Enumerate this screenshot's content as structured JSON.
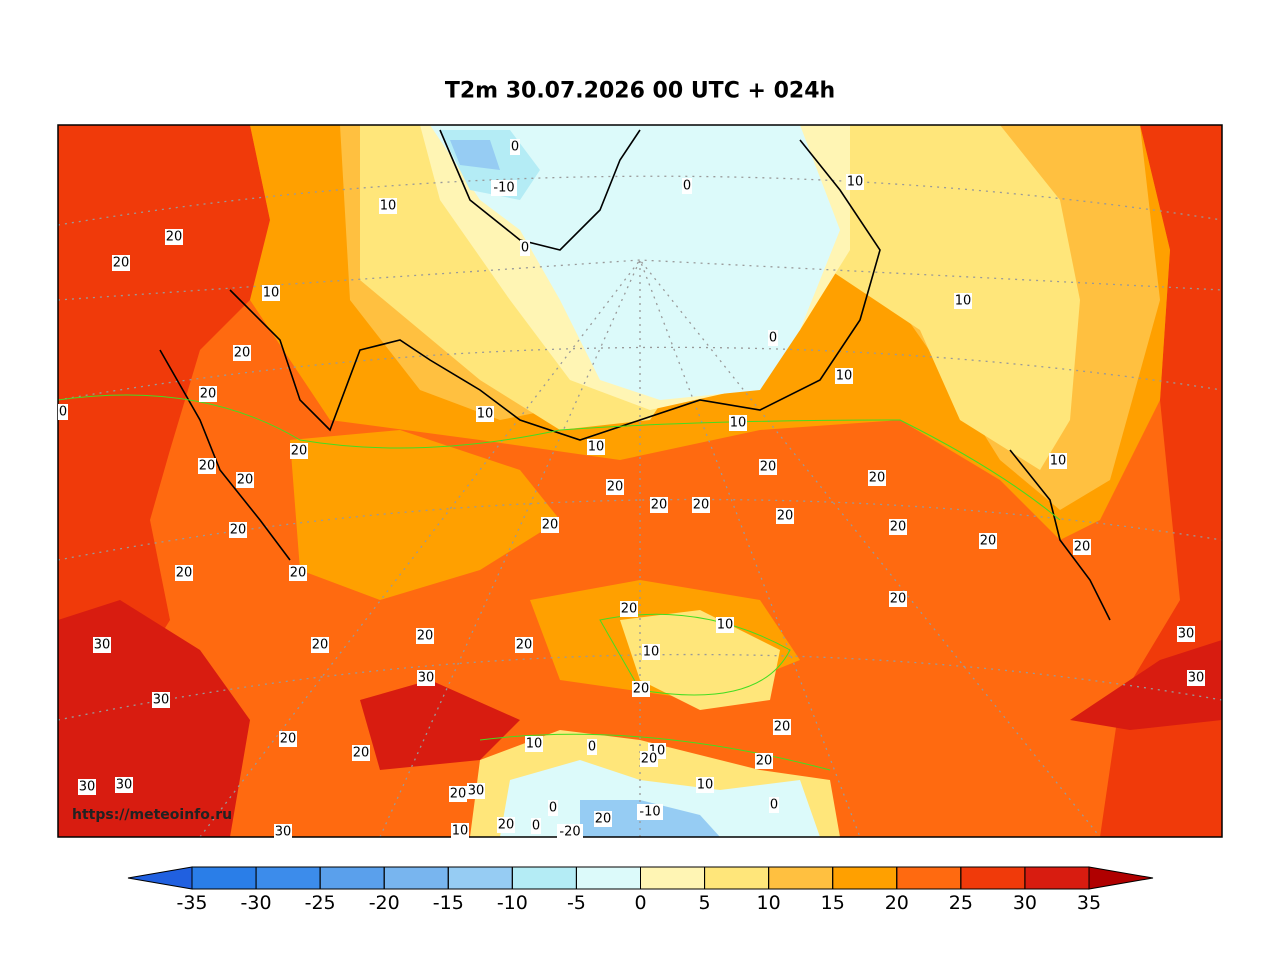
{
  "title": "T2m 30.07.2026 00 UTC + 024h",
  "watermark": "https://meteoinfo.ru",
  "colorbar": {
    "ticks": [
      -35,
      -30,
      -25,
      -20,
      -15,
      -10,
      -5,
      0,
      5,
      10,
      15,
      20,
      25,
      30,
      35
    ],
    "colors": [
      "#2a7ee8",
      "#3c8ceb",
      "#5aa0ec",
      "#78b5ef",
      "#96ccf3",
      "#b4ecf5",
      "#dcfafa",
      "#fff5b4",
      "#ffe67a",
      "#ffc040",
      "#ffa000",
      "#ff6a10",
      "#f03a0a",
      "#d81c10"
    ],
    "under_color": "#2060e0",
    "over_color": "#b00000"
  },
  "contour_labels": [
    20,
    20,
    10,
    10,
    0,
    -10,
    0,
    0,
    10,
    10,
    20,
    20,
    0,
    10,
    0,
    10,
    10,
    10,
    20,
    20,
    20,
    20,
    20,
    10,
    20,
    20,
    20,
    20,
    20,
    20,
    20,
    20,
    20,
    20,
    20,
    20,
    20,
    10,
    30,
    30,
    20,
    20,
    20,
    10,
    30,
    30,
    20,
    30,
    20,
    20,
    10,
    0,
    20,
    10,
    20,
    20,
    30,
    30,
    10,
    20,
    30,
    0,
    0,
    -10,
    20,
    20,
    0,
    -20,
    10,
    30
  ]
}
